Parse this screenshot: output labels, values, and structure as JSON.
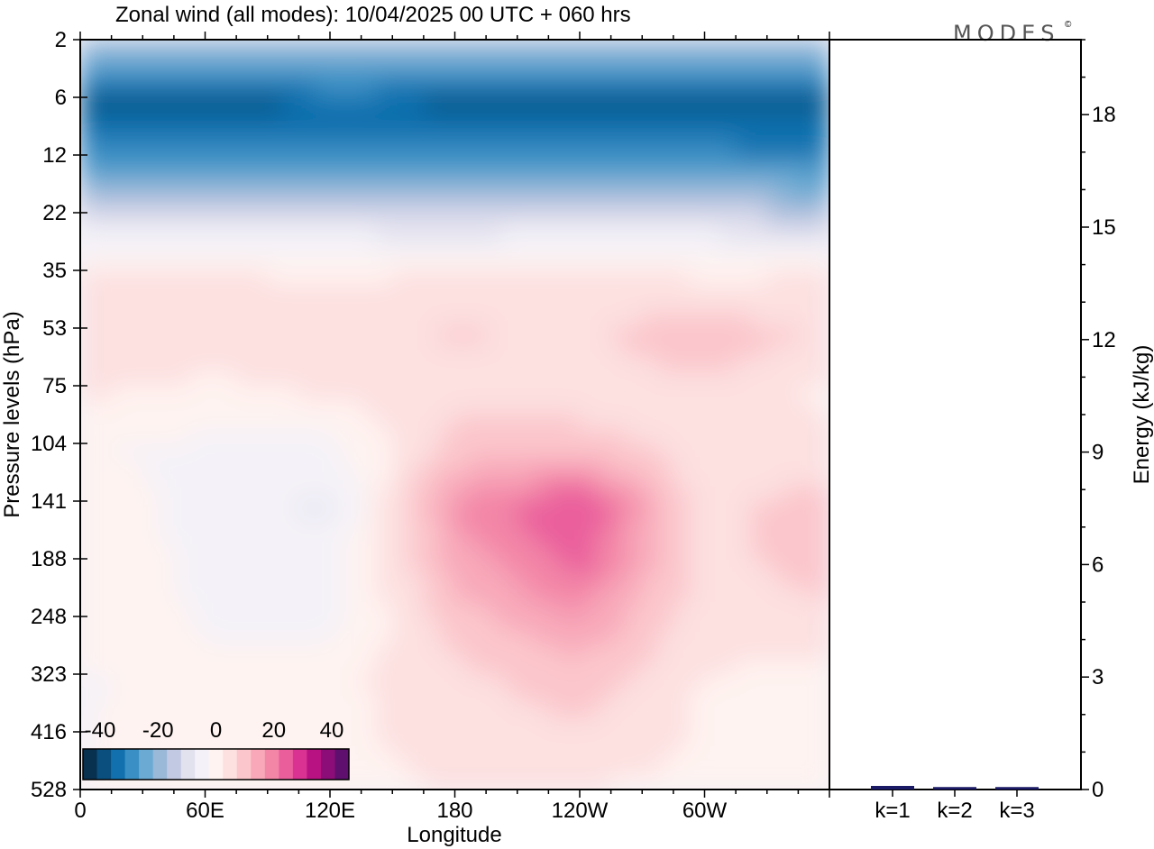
{
  "chart_data": {
    "type": "heatmap",
    "title": "Zonal wind (all modes):  10/04/2025  00 UTC  + 060 hrs",
    "brand": "MODES",
    "brand_mark": "©",
    "xlabel": "Longitude",
    "ylabel": "Pressure levels (hPa)",
    "x_ticks": [
      "0",
      "60E",
      "120E",
      "180",
      "120W",
      "60W"
    ],
    "y_ticks": [
      "2",
      "6",
      "12",
      "22",
      "35",
      "53",
      "75",
      "104",
      "141",
      "188",
      "248",
      "323",
      "416",
      "528"
    ],
    "colorbar": {
      "ticks": [
        "-40",
        "-20",
        "0",
        "20",
        "40"
      ],
      "colors": [
        "#08304f",
        "#0a4f7e",
        "#1170ad",
        "#3a8fc4",
        "#6aaad3",
        "#9ab8d8",
        "#c2c9e2",
        "#e2e1ee",
        "#f4f2f8",
        "#fef3f0",
        "#fde0e0",
        "#fbc6cc",
        "#f8a8b9",
        "#f386a7",
        "#ea5e9c",
        "#d93292",
        "#b81282",
        "#8c0d78",
        "#5f0f6e"
      ]
    },
    "zonal_wind_field": {
      "x_lon_east": [
        0,
        60,
        120,
        180,
        240,
        300,
        355
      ],
      "y_hPa": [
        2,
        6,
        12,
        22,
        35,
        53,
        75,
        104,
        141,
        188,
        248,
        323,
        416,
        528
      ],
      "u_ms": [
        [
          -20,
          -20,
          -20,
          -20,
          -20,
          -20,
          -20
        ],
        [
          -38,
          -40,
          -36,
          -38,
          -38,
          -38,
          -38
        ],
        [
          -30,
          -30,
          -30,
          -30,
          -30,
          -30,
          -32
        ],
        [
          -10,
          -10,
          -10,
          -12,
          -10,
          -10,
          -15
        ],
        [
          3,
          3,
          2,
          3,
          5,
          2,
          3
        ],
        [
          6,
          6,
          5,
          8,
          6,
          12,
          6
        ],
        [
          3,
          1,
          3,
          6,
          3,
          6,
          2
        ],
        [
          -2,
          -4,
          -5,
          10,
          12,
          4,
          3
        ],
        [
          3,
          -6,
          -8,
          18,
          28,
          5,
          11
        ],
        [
          2,
          -4,
          -5,
          14,
          24,
          5,
          10
        ],
        [
          1,
          -3,
          -4,
          10,
          16,
          5,
          5
        ],
        [
          -3,
          -1,
          1,
          6,
          10,
          2,
          1
        ],
        [
          -3,
          1,
          1,
          5,
          6,
          2,
          -1
        ],
        [
          -2,
          -1,
          0,
          3,
          2,
          1,
          -3
        ]
      ]
    },
    "energy_panel": {
      "type": "bar",
      "ylabel": "Energy (kJ/kg)",
      "y_ticks": [
        "0",
        "3",
        "6",
        "9",
        "12",
        "15",
        "18"
      ],
      "ylim": [
        0,
        20
      ],
      "categories": [
        "k=1",
        "k=2",
        "k=3"
      ],
      "values": [
        0.06,
        0.03,
        0.03
      ],
      "bar_color": "#1a1a66"
    }
  }
}
